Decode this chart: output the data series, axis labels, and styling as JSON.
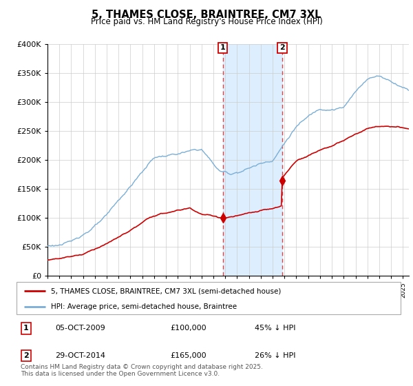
{
  "title": "5, THAMES CLOSE, BRAINTREE, CM7 3XL",
  "subtitle": "Price paid vs. HM Land Registry's House Price Index (HPI)",
  "legend_property": "5, THAMES CLOSE, BRAINTREE, CM7 3XL (semi-detached house)",
  "legend_hpi": "HPI: Average price, semi-detached house, Braintree",
  "property_color": "#cc0000",
  "hpi_color": "#7aaed6",
  "shading_color": "#ddeeff",
  "vline_color": "#dd4444",
  "annotation1": {
    "label": "1",
    "date": "05-OCT-2009",
    "price": "£100,000",
    "pct": "45% ↓ HPI"
  },
  "annotation2": {
    "label": "2",
    "date": "29-OCT-2014",
    "price": "£165,000",
    "pct": "26% ↓ HPI"
  },
  "footnote": "Contains HM Land Registry data © Crown copyright and database right 2025.\nThis data is licensed under the Open Government Licence v3.0.",
  "ylim": [
    0,
    400000
  ],
  "yticks": [
    0,
    50000,
    100000,
    150000,
    200000,
    250000,
    300000,
    350000,
    400000
  ],
  "sale1_year": 2009.79,
  "sale2_year": 2014.83,
  "sale1_price": 100000,
  "sale2_price": 165000
}
